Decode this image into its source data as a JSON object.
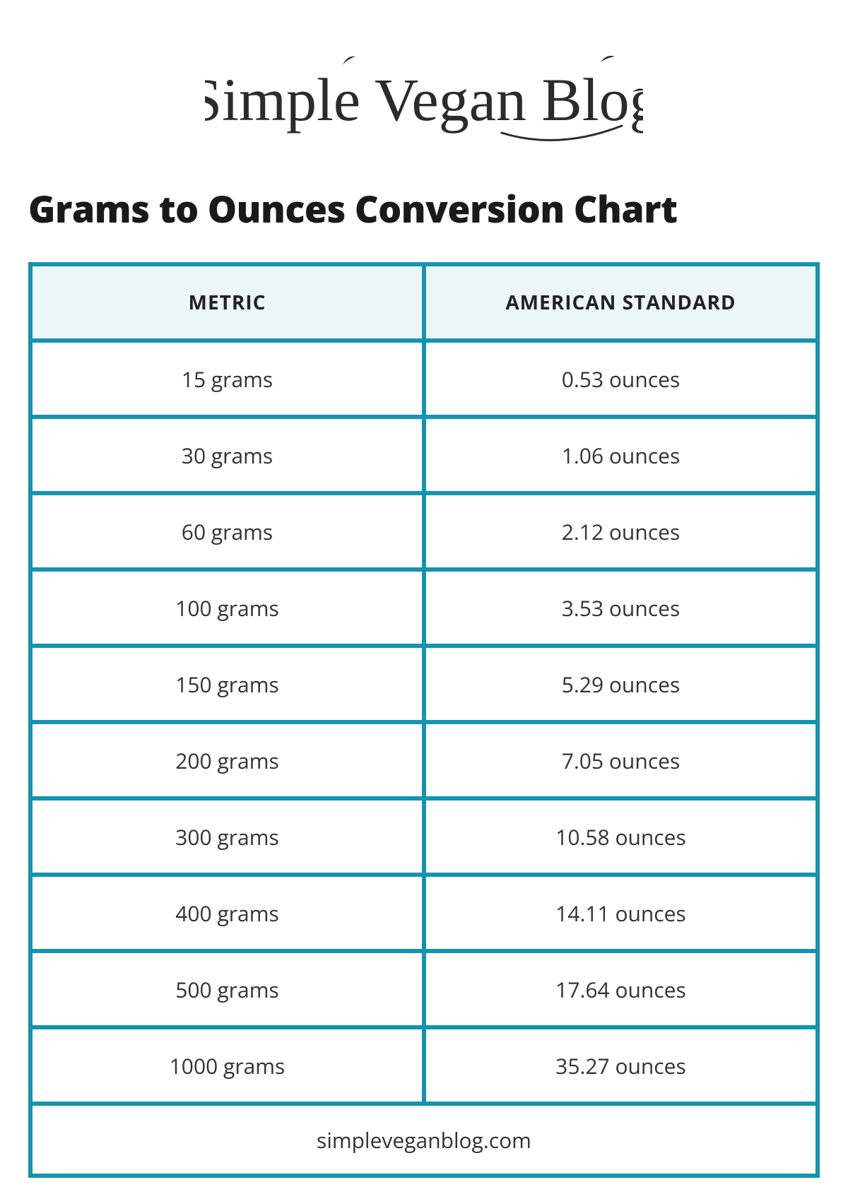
{
  "logo_text": "Simple Vegan Blog",
  "title": "Grams to Ounces Conversion Chart",
  "border_color": "#1295b0",
  "header_bg": "#eef7f7",
  "cell_bg": "#ffffff",
  "text_color": "#333333",
  "title_color": "#1a1a1a",
  "header_font_size": 28,
  "cell_font_size": 30,
  "title_font_size": 52,
  "columns": [
    "METRIC",
    "AMERICAN STANDARD"
  ],
  "rows": [
    [
      "15 grams",
      "0.53 ounces"
    ],
    [
      "30 grams",
      "1.06 ounces"
    ],
    [
      "60 grams",
      "2.12 ounces"
    ],
    [
      "100 grams",
      "3.53 ounces"
    ],
    [
      "150 grams",
      "5.29 ounces"
    ],
    [
      "200 grams",
      "7.05 ounces"
    ],
    [
      "300 grams",
      "10.58 ounces"
    ],
    [
      "400 grams",
      "14.11 ounces"
    ],
    [
      "500 grams",
      "17.64 ounces"
    ],
    [
      "1000 grams",
      "35.27 ounces"
    ]
  ],
  "footer": "simpleveganblog.com"
}
